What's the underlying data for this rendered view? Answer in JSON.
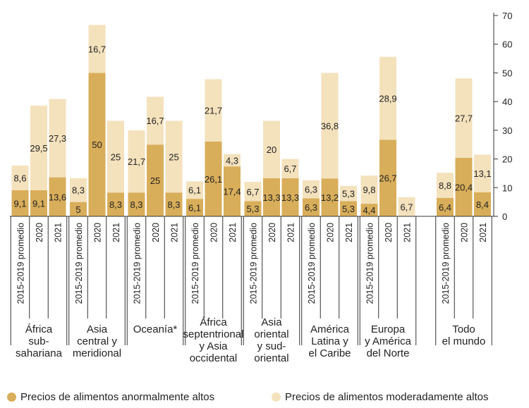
{
  "chart_data": {
    "type": "bar",
    "stacked": true,
    "y_axis": {
      "position": "right",
      "ylim": [
        0,
        70
      ],
      "ticks": [
        0,
        10,
        20,
        30,
        40,
        50,
        60,
        70
      ]
    },
    "grid": false,
    "legend_placement": "bottom",
    "series": [
      {
        "name": "Precios de alimentos anormalmente altos",
        "color": "#d9ae5a"
      },
      {
        "name": "Precios de alimentos moderadamente altos",
        "color": "#f4e2bd"
      }
    ],
    "groups": [
      {
        "label": [
          "África",
          "sub-",
          "sahariana"
        ],
        "bars": [
          {
            "x": "2015-2019 promedio",
            "anormal": 9.1,
            "moderado": 8.6,
            "anormal_label": "9,1",
            "moderado_label": "8,6"
          },
          {
            "x": "2020",
            "anormal": 9.1,
            "moderado": 29.5,
            "anormal_label": "9,1",
            "moderado_label": "29,5"
          },
          {
            "x": "2021",
            "anormal": 13.6,
            "moderado": 27.3,
            "anormal_label": "13,6",
            "moderado_label": "27,3"
          }
        ]
      },
      {
        "label": [
          "Asia",
          "central y",
          "meridional"
        ],
        "bars": [
          {
            "x": "2015-2019 promedio",
            "anormal": 5,
            "moderado": 8.3,
            "anormal_label": "5",
            "moderado_label": "8,3"
          },
          {
            "x": "2020",
            "anormal": 50,
            "moderado": 16.7,
            "anormal_label": "50",
            "moderado_label": "16,7"
          },
          {
            "x": "2021",
            "anormal": 8.3,
            "moderado": 25,
            "anormal_label": "8,3",
            "moderado_label": "25"
          }
        ]
      },
      {
        "label": [
          "Oceanía*"
        ],
        "bars": [
          {
            "x": "2015-2019 promedio",
            "anormal": 8.3,
            "moderado": 21.7,
            "anormal_label": "8,3",
            "moderado_label": "21,7"
          },
          {
            "x": "2020",
            "anormal": 25,
            "moderado": 16.7,
            "anormal_label": "25",
            "moderado_label": "16,7"
          },
          {
            "x": "2021",
            "anormal": 8.3,
            "moderado": 25,
            "anormal_label": "8,3",
            "moderado_label": "25"
          }
        ]
      },
      {
        "label": [
          "África",
          "septentrional",
          "y Asia",
          "occidental"
        ],
        "bars": [
          {
            "x": "2015-2019 promedio",
            "anormal": 6.1,
            "moderado": 6.1,
            "anormal_label": "6,1",
            "moderado_label": "6,1"
          },
          {
            "x": "2020",
            "anormal": 26.1,
            "moderado": 21.7,
            "anormal_label": "26,1",
            "moderado_label": "21,7"
          },
          {
            "x": "2021",
            "anormal": 17.4,
            "moderado": 4.3,
            "anormal_label": "17,4",
            "moderado_label": "4,3"
          }
        ]
      },
      {
        "label": [
          "Asia",
          "oriental",
          "y sud-",
          "oriental"
        ],
        "bars": [
          {
            "x": "2015-2019 promedio",
            "anormal": 5.3,
            "moderado": 6.7,
            "anormal_label": "5,3",
            "moderado_label": "6,7"
          },
          {
            "x": "2020",
            "anormal": 13.3,
            "moderado": 20,
            "anormal_label": "13,3",
            "moderado_label": "20"
          },
          {
            "x": "2021",
            "anormal": 13.3,
            "moderado": 6.7,
            "anormal_label": "13,3",
            "moderado_label": "6,7"
          }
        ]
      },
      {
        "label": [
          "América",
          "Latina y",
          "el Caribe"
        ],
        "bars": [
          {
            "x": "2015-2019 promedio",
            "anormal": 6.3,
            "moderado": 6.3,
            "anormal_label": "6,3",
            "moderado_label": "6,3"
          },
          {
            "x": "2020",
            "anormal": 13.2,
            "moderado": 36.8,
            "anormal_label": "13,2",
            "moderado_label": "36,8"
          },
          {
            "x": "2021",
            "anormal": 5.3,
            "moderado": 5.3,
            "anormal_label": "5,3",
            "moderado_label": "5,3"
          }
        ]
      },
      {
        "label": [
          "Europa",
          "y América",
          "del Norte"
        ],
        "bars": [
          {
            "x": "2015-2019 promedio",
            "anormal": 4.4,
            "moderado": 9.8,
            "anormal_label": "4,4",
            "moderado_label": "9,8"
          },
          {
            "x": "2020",
            "anormal": 26.7,
            "moderado": 28.9,
            "anormal_label": "26,7",
            "moderado_label": "28,9"
          },
          {
            "x": "2021",
            "anormal": 0,
            "moderado": 6.7,
            "anormal_label": "",
            "moderado_label": "6,7"
          }
        ]
      },
      {
        "label": [
          "Todo",
          "el mundo"
        ],
        "bars": [
          {
            "x": "2015-2019 promedio",
            "anormal": 6.4,
            "moderado": 8.8,
            "anormal_label": "6,4",
            "moderado_label": "8,8"
          },
          {
            "x": "2020",
            "anormal": 20.4,
            "moderado": 27.7,
            "anormal_label": "20,4",
            "moderado_label": "27,7"
          },
          {
            "x": "2021",
            "anormal": 8.4,
            "moderado": 13.1,
            "anormal_label": "8,4",
            "moderado_label": "13,1"
          }
        ]
      }
    ]
  }
}
